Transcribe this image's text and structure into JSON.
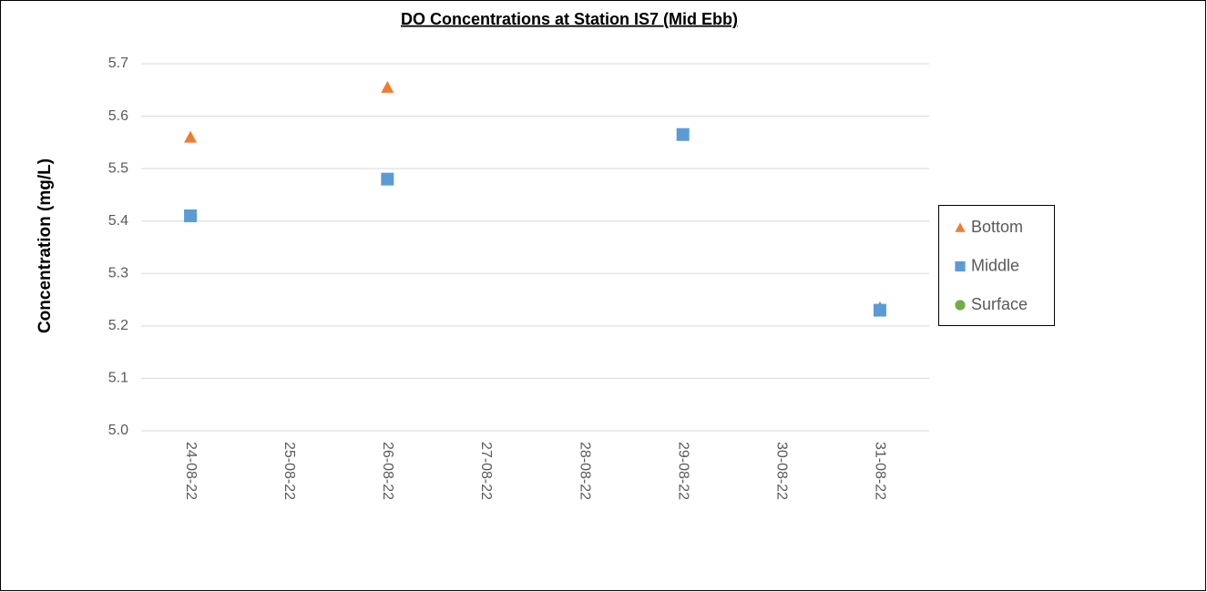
{
  "chart_data": {
    "type": "scatter",
    "title": "DO Concentrations at Station IS7 (Mid Ebb)",
    "y_label": "Concentration (mg/L)",
    "categories": [
      "24-08-22",
      "25-08-22",
      "26-08-22",
      "27-08-22",
      "28-08-22",
      "29-08-22",
      "30-08-22",
      "31-08-22"
    ],
    "series": [
      {
        "name": "Bottom",
        "color": "#ed7d31",
        "marker": "triangle",
        "values": [
          5.56,
          null,
          5.655,
          null,
          null,
          null,
          null,
          5.235
        ]
      },
      {
        "name": "Middle",
        "color": "#5b9bd5",
        "marker": "square",
        "values": [
          5.41,
          null,
          5.48,
          null,
          null,
          5.565,
          null,
          5.23
        ]
      },
      {
        "name": "Surface",
        "color": "#70ad47",
        "marker": "circle",
        "values": [
          null,
          null,
          null,
          null,
          null,
          null,
          null,
          null
        ]
      }
    ],
    "ylim": [
      5.0,
      5.7
    ],
    "yticks": [
      {
        "value": 5.0,
        "label": "5.0"
      },
      5.1,
      5.2,
      5.3,
      5.4,
      5.5,
      5.6,
      5.7
    ],
    "grid": true,
    "legend": "right"
  }
}
